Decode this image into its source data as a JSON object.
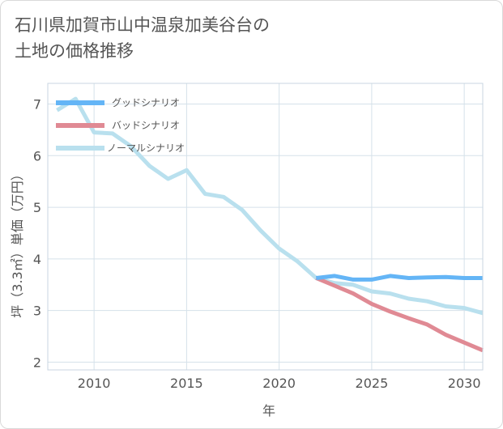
{
  "title_lines": [
    "石川県加賀市山中温泉加美谷台の",
    "土地の価格推移"
  ],
  "chart_data": {
    "type": "line",
    "title": "石川県加賀市山中温泉加美谷台の土地の価格推移",
    "xlabel": "年",
    "ylabel": "坪（3.3㎡）単価（万円）",
    "xlim": [
      2007.5,
      2031
    ],
    "ylim": [
      1.85,
      7.4
    ],
    "xticks": [
      2010,
      2015,
      2020,
      2025,
      2030
    ],
    "yticks": [
      2,
      3,
      4,
      5,
      6,
      7
    ],
    "grid": true,
    "legend_position": "top-left",
    "series": [
      {
        "name": "グッドシナリオ",
        "color": "#64b5f6",
        "x": [
          2022,
          2023,
          2024,
          2025,
          2026,
          2027,
          2028,
          2029,
          2030,
          2031
        ],
        "y": [
          3.63,
          3.67,
          3.6,
          3.6,
          3.67,
          3.63,
          3.64,
          3.65,
          3.63,
          3.63
        ]
      },
      {
        "name": "バッドシナリオ",
        "color": "#e08a94",
        "x": [
          2022,
          2023,
          2024,
          2025,
          2026,
          2027,
          2028,
          2029,
          2030,
          2031
        ],
        "y": [
          3.63,
          3.48,
          3.33,
          3.13,
          2.98,
          2.85,
          2.73,
          2.53,
          2.38,
          2.23
        ]
      },
      {
        "name": "ノーマルシナリオ",
        "color": "#b9e0ee",
        "x": [
          2008,
          2009,
          2010,
          2011,
          2012,
          2013,
          2014,
          2015,
          2016,
          2017,
          2018,
          2019,
          2020,
          2021,
          2022,
          2023,
          2024,
          2025,
          2026,
          2027,
          2028,
          2029,
          2030,
          2031
        ],
        "y": [
          6.88,
          7.1,
          6.45,
          6.43,
          6.18,
          5.8,
          5.55,
          5.72,
          5.26,
          5.2,
          4.95,
          4.55,
          4.2,
          3.95,
          3.63,
          3.53,
          3.5,
          3.37,
          3.33,
          3.23,
          3.18,
          3.08,
          3.05,
          2.95
        ]
      }
    ]
  }
}
